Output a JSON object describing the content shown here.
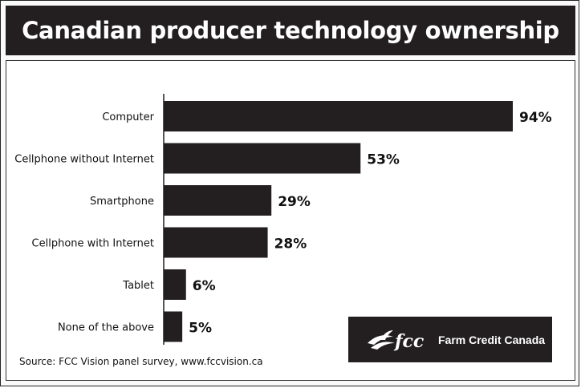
{
  "chart_data": {
    "type": "bar",
    "orientation": "horizontal",
    "title": "Canadian producer technology ownership",
    "categories": [
      "Computer",
      "Cellphone without Internet",
      "Smartphone",
      "Cellphone with Internet",
      "Tablet",
      "None of the above"
    ],
    "values": [
      94,
      53,
      29,
      28,
      6,
      5
    ],
    "value_labels": [
      "94%",
      "53%",
      "29%",
      "28%",
      "6%",
      "5%"
    ],
    "xlim": [
      0,
      94
    ],
    "grid": false,
    "legend": "none",
    "bar_color": "#231f20"
  },
  "footer": {
    "source": "Source: FCC Vision panel survey, www.fccvision.ca"
  },
  "brand": {
    "logo_name": "fcc-logo-icon",
    "logo_lettering": "fcc",
    "name": "Farm Credit Canada",
    "background": "#231f20"
  }
}
